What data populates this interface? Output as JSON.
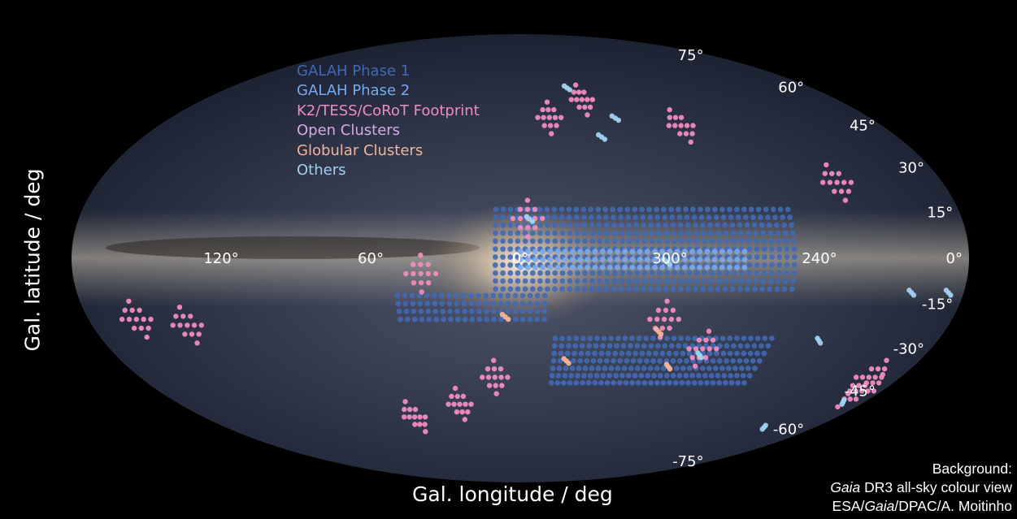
{
  "chart_data": {
    "type": "scatter",
    "projection": "mollweide",
    "xlabel": "Gal. longitude / deg",
    "ylabel": "Gal. latitude / deg",
    "x_ticks": [
      "120°",
      "60°",
      "0°",
      "300°",
      "240°"
    ],
    "x_tick_values": [
      120,
      60,
      0,
      300,
      240
    ],
    "y_ticks": [
      "75°",
      "60°",
      "45°",
      "30°",
      "15°",
      "0°",
      "-15°",
      "-30°",
      "-45°",
      "-60°",
      "-75°"
    ],
    "y_tick_values": [
      75,
      60,
      45,
      30,
      15,
      0,
      -15,
      -30,
      -45,
      -60,
      -75
    ],
    "legend_position": "upper-left",
    "series": [
      {
        "name": "GALAH Phase 1",
        "color": "#4169b4"
      },
      {
        "name": "GALAH Phase 2",
        "color": "#78aaf0"
      },
      {
        "name": "K2/TESS/CoRoT Footprint",
        "color": "#f08cbe"
      },
      {
        "name": "Open Clusters",
        "color": "#d8a8e4"
      },
      {
        "name": "Globular Clusters",
        "color": "#f2b49a"
      },
      {
        "name": "Others",
        "color": "#a0d2f0"
      }
    ],
    "regions": [
      {
        "series": "GALAH Phase 1",
        "shape": "band",
        "l_range": [
          10,
          250
        ],
        "b_range": [
          -10,
          17
        ]
      },
      {
        "series": "GALAH Phase 1",
        "shape": "band",
        "l_range": [
          345,
          250
        ],
        "b_range": [
          -42,
          -24
        ]
      },
      {
        "series": "GALAH Phase 1",
        "shape": "band",
        "l_range": [
          50,
          350
        ],
        "b_range": [
          -20,
          -10
        ]
      },
      {
        "series": "GALAH Phase 2",
        "shape": "band",
        "l_range": [
          0,
          270
        ],
        "b_range": [
          -3,
          3
        ]
      },
      {
        "series": "K2/TESS/CoRoT Footprint",
        "shape": "fields",
        "centers": [
          [
            357,
            13
          ],
          [
            40,
            -5
          ],
          [
            12,
            -40
          ],
          [
            32,
            -50
          ],
          [
            60,
            -55
          ],
          [
            140,
            -22
          ],
          [
            160,
            -20
          ],
          [
            190,
            -45
          ],
          [
            195,
            -40
          ],
          [
            225,
            25
          ],
          [
            280,
            45
          ],
          [
            325,
            55
          ],
          [
            345,
            48
          ],
          [
            300,
            -20
          ],
          [
            280,
            -30
          ]
        ]
      },
      {
        "series": "Others",
        "shape": "points",
        "centers": [
          [
            355,
            12
          ],
          [
            300,
            -2
          ],
          [
            279,
            -33
          ],
          [
            200,
            -12
          ],
          [
            185,
            -12
          ],
          [
            330,
            59
          ],
          [
            310,
            47
          ],
          [
            320,
            40
          ],
          [
            190,
            -50
          ],
          [
            210,
            -60
          ],
          [
            230,
            -28
          ]
        ]
      },
      {
        "series": "Globular Clusters",
        "shape": "points",
        "centers": [
          [
            338,
            -35
          ],
          [
            291,
            -37
          ],
          [
            300,
            -25
          ],
          [
            5,
            -20
          ]
        ]
      }
    ]
  },
  "credit": {
    "line1": "Background:",
    "line2_italic": "Gaia",
    "line2_rest": " DR3 all-sky colour view",
    "line3_a": "ESA/",
    "line3_italic": "Gaia",
    "line3_b": "/DPAC/A. Moitinho"
  }
}
